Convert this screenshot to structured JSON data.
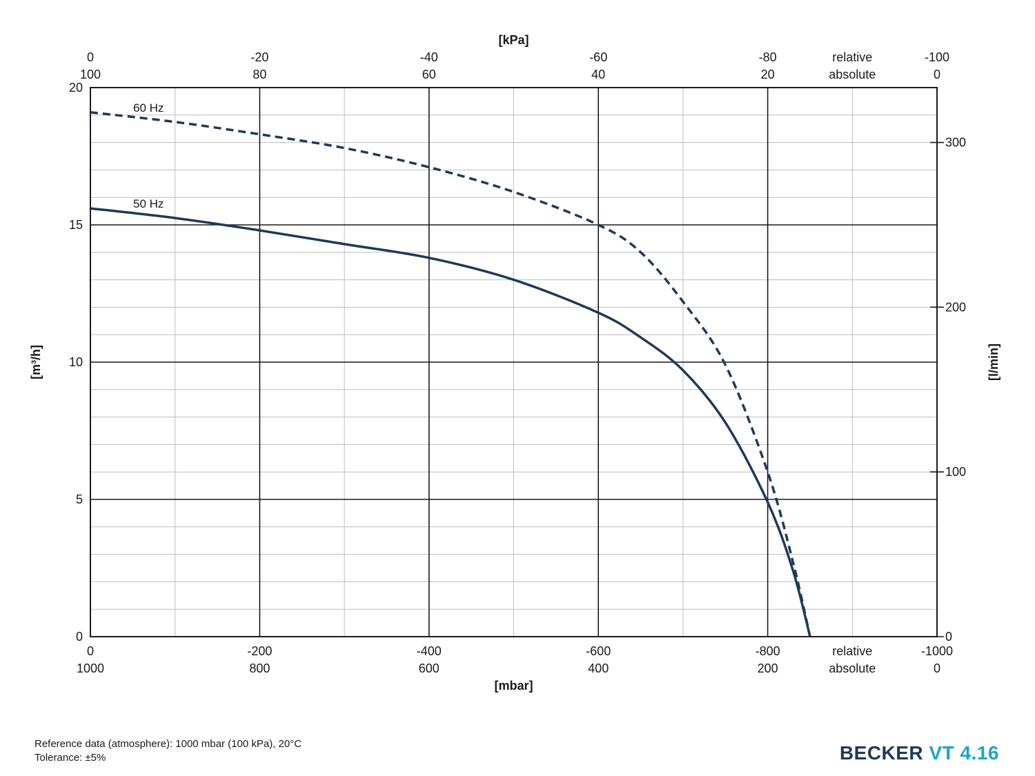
{
  "chart_data": {
    "type": "line",
    "x_axis": {
      "label": "[mbar]",
      "range": [
        0,
        -1000
      ],
      "ticks": [
        0,
        -200,
        -400,
        -600,
        -800,
        -1000
      ],
      "tick_labels_relative": [
        "0",
        "-200",
        "-400",
        "-600",
        "-800",
        "-1000"
      ],
      "tick_labels_absolute": [
        "1000",
        "800",
        "600",
        "400",
        "200",
        "0"
      ],
      "relative_label": "relative",
      "absolute_label": "absolute"
    },
    "x2_axis": {
      "label": "[kPa]",
      "tick_labels_relative": [
        "0",
        "-20",
        "-40",
        "-60",
        "-80",
        "-100"
      ],
      "tick_labels_absolute": [
        "100",
        "80",
        "60",
        "40",
        "20",
        "0"
      ],
      "relative_label": "relative",
      "absolute_label": "absolute"
    },
    "y_axis": {
      "label": "[m³/h]",
      "range": [
        0,
        20
      ],
      "ticks": [
        0,
        5,
        10,
        15,
        20
      ]
    },
    "y2_axis": {
      "label": "[l/min]",
      "range": [
        0,
        333.3
      ],
      "ticks": [
        0,
        100,
        200,
        300
      ]
    },
    "grid": true,
    "series": [
      {
        "name": "50 Hz",
        "style": "solid",
        "color": "#1c3a5a",
        "x": [
          0,
          -100,
          -200,
          -300,
          -400,
          -500,
          -600,
          -650,
          -700,
          -750,
          -800,
          -830,
          -850
        ],
        "y": [
          15.6,
          15.25,
          14.8,
          14.3,
          13.8,
          13.0,
          11.8,
          10.9,
          9.7,
          7.8,
          4.9,
          2.4,
          0
        ]
      },
      {
        "name": "60 Hz",
        "style": "dashed",
        "color": "#1c3a5a",
        "x": [
          0,
          -100,
          -200,
          -300,
          -400,
          -500,
          -600,
          -650,
          -700,
          -750,
          -800,
          -830,
          -850
        ],
        "y": [
          19.1,
          18.75,
          18.3,
          17.8,
          17.1,
          16.2,
          15.0,
          14.0,
          12.2,
          9.9,
          6.0,
          2.7,
          0
        ]
      }
    ]
  },
  "footer": {
    "reference": "Reference data (atmosphere): 1000 mbar (100 kPa), 20°C",
    "tolerance": "Tolerance: ±5%",
    "brand_main": "BECKER",
    "brand_model": "VT 4.16"
  }
}
